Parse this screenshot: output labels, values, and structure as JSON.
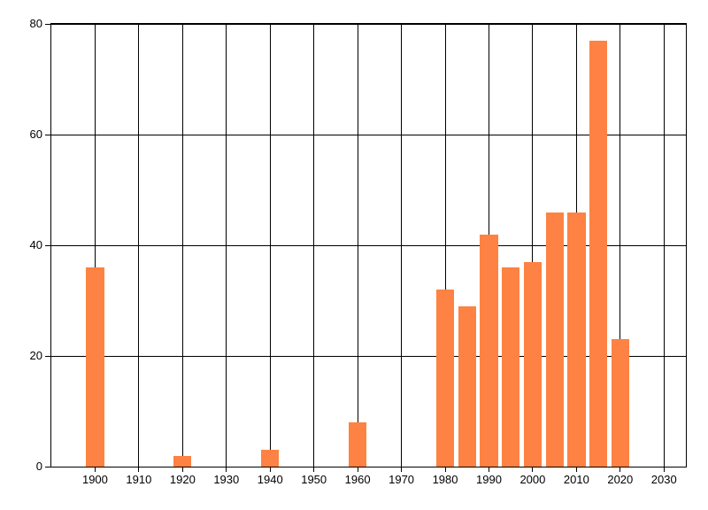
{
  "chart_data": {
    "type": "bar",
    "title": "",
    "xlabel": "",
    "ylabel": "",
    "x": [
      1900,
      1920,
      1940,
      1960,
      1980,
      1985,
      1990,
      1995,
      2000,
      2005,
      2010,
      2015,
      2020
    ],
    "values": [
      36,
      2,
      3,
      8,
      32,
      29,
      42,
      36,
      37,
      46,
      46,
      77,
      23
    ],
    "xlim": [
      1890,
      2035
    ],
    "ylim": [
      0,
      80
    ],
    "x_ticks": [
      1900,
      1910,
      1920,
      1930,
      1940,
      1950,
      1960,
      1970,
      1980,
      1990,
      2000,
      2010,
      2020,
      2030
    ],
    "x_tick_labels": [
      "1900",
      "1910",
      "1920",
      "1930",
      "1940",
      "1950",
      "1960",
      "1970",
      "1980",
      "1990",
      "2000",
      "2010",
      "2020",
      "2030"
    ],
    "y_ticks": [
      0,
      20,
      40,
      60,
      80
    ],
    "y_tick_labels": [
      "0",
      "20",
      "40",
      "60",
      "80"
    ],
    "grid": "both",
    "legend": "none",
    "bar_width_years": 4.1,
    "colors": {
      "bar": "#fd8243",
      "grid": "#000000",
      "axis": "#000000",
      "text": "#000000",
      "background": "#ffffff"
    }
  }
}
